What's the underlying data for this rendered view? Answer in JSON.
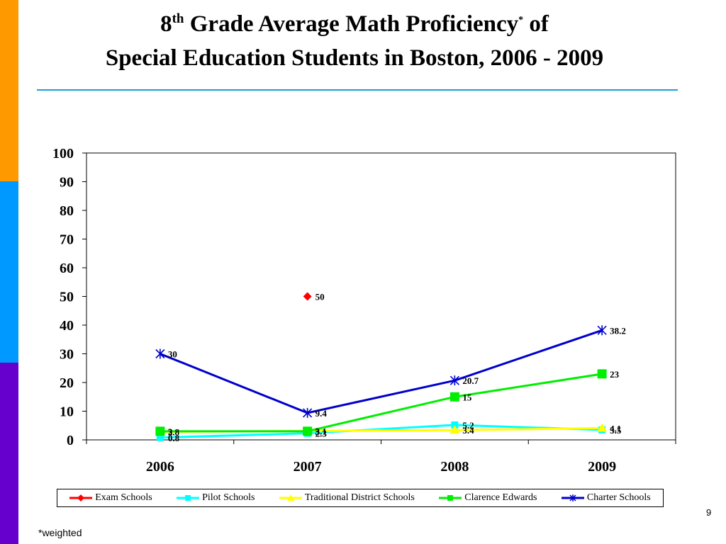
{
  "slide": {
    "title_prefix": "8",
    "title_sup": "th",
    "title_main": " Grade Average Math Proficiency",
    "title_asterisk": "*",
    "title_suffix": " of",
    "title_line2": "Special Education Students in Boston, 2006 - 2009",
    "page_number": "9",
    "footnote": "*weighted"
  },
  "colors": {
    "stripe_top": "#ff9900",
    "stripe_mid": "#0099ff",
    "stripe_bottom": "#6600cc",
    "rule": "#1a9fd9"
  },
  "chart_data": {
    "type": "line",
    "categories": [
      "2006",
      "2007",
      "2008",
      "2009"
    ],
    "ylim": [
      0,
      100
    ],
    "yticks": [
      "0",
      "10",
      "20",
      "30",
      "40",
      "50",
      "60",
      "70",
      "80",
      "90",
      "100"
    ],
    "legend_position": "bottom",
    "grid": false,
    "series": [
      {
        "name": "Exam Schools",
        "color": "#ff0000",
        "marker": "diamond",
        "values": [
          null,
          50,
          null,
          null
        ],
        "labels": [
          null,
          "50",
          null,
          null
        ]
      },
      {
        "name": "Pilot Schools",
        "color": "#00ffff",
        "marker": "square",
        "values": [
          0.8,
          2.3,
          5.2,
          3.5
        ],
        "labels": [
          "0.8",
          "2.3",
          "5.2",
          "3.5"
        ]
      },
      {
        "name": "Traditional District Schools",
        "color": "#ffff00",
        "marker": "triangle",
        "values": [
          2.8,
          3.1,
          3.4,
          4.1
        ],
        "labels": [
          "2.8",
          "3.1",
          "3.4",
          "4.1"
        ]
      },
      {
        "name": "Clarence Edwards",
        "color": "#00ee00",
        "marker": "square-large",
        "values": [
          3,
          3,
          15,
          23
        ],
        "labels": [
          "3",
          "3",
          "15",
          "23"
        ]
      },
      {
        "name": "Charter Schools",
        "color": "#0000cc",
        "marker": "star",
        "values": [
          30,
          9.4,
          20.7,
          38.2
        ],
        "labels": [
          "30",
          "9.4",
          "20.7",
          "38.2"
        ]
      }
    ]
  }
}
